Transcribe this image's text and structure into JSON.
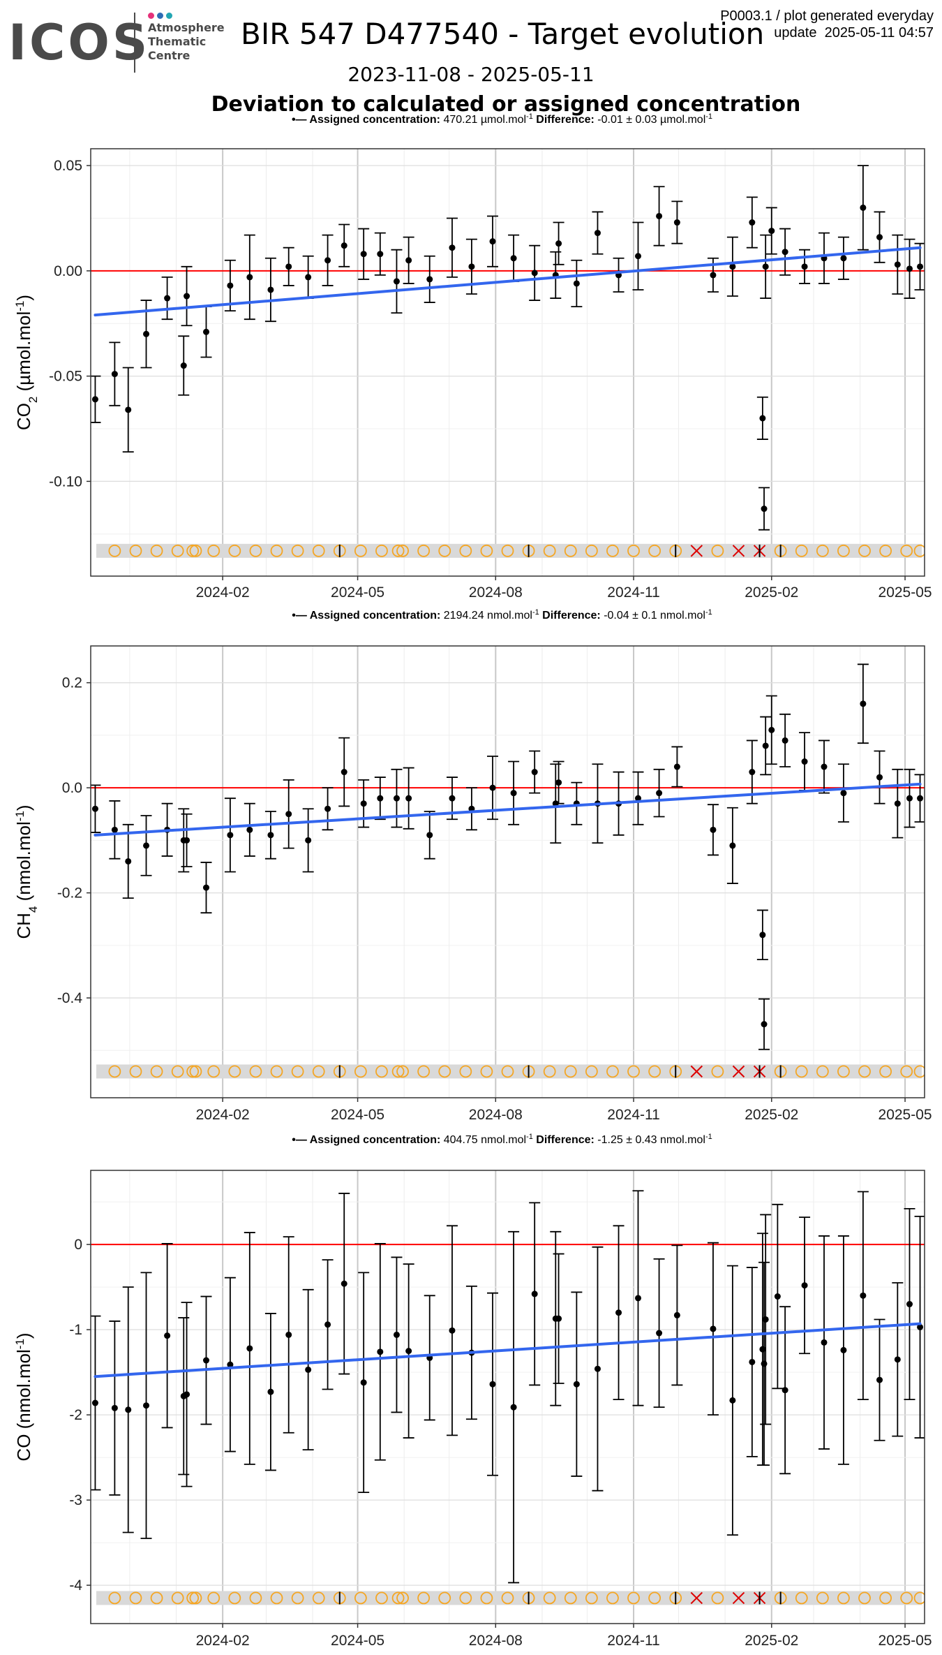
{
  "header": {
    "logo_text": "ICOS",
    "logo_sub_1": "Atmosphere",
    "logo_sub_2": "Thematic",
    "logo_sub_3": "Centre",
    "logo_dot_colors": [
      "#e5317a",
      "#2e6cb5",
      "#22a6b3"
    ],
    "title": "BIR 547 D477540 - Target evolution",
    "code": "P0003.1 / plot generated everyday",
    "update": "update  2025-05-11 04:57",
    "date_range": "2023-11-08 - 2025-05-11",
    "subtitle": "Deviation to calculated or assigned concentration"
  },
  "colors": {
    "trend": "#3366ee",
    "zero_line": "#ff0000",
    "points": "#000000",
    "flag_ok": "#f5a623",
    "flag_bad": "#dd0000",
    "flag_band": "#d9d9d9"
  },
  "flags": {
    "x": [
      "2023-11-21",
      "2023-12-05",
      "2023-12-19",
      "2024-01-02",
      "2024-01-12",
      "2024-01-14",
      "2024-01-26",
      "2024-02-09",
      "2024-02-23",
      "2024-03-08",
      "2024-03-22",
      "2024-04-05",
      "2024-04-19",
      "2024-05-03",
      "2024-05-17",
      "2024-05-28",
      "2024-05-31",
      "2024-06-14",
      "2024-06-28",
      "2024-07-12",
      "2024-07-26",
      "2024-08-09",
      "2024-08-23",
      "2024-09-06",
      "2024-09-20",
      "2024-10-04",
      "2024-10-18",
      "2024-11-01",
      "2024-11-15",
      "2024-11-29",
      "2024-12-13",
      "2024-12-27",
      "2025-01-10",
      "2025-01-24",
      "2025-02-07",
      "2025-02-21",
      "2025-03-07",
      "2025-03-21",
      "2025-04-04",
      "2025-04-18",
      "2025-05-02",
      "2025-05-11"
    ],
    "status": [
      "ok",
      "ok",
      "ok",
      "ok",
      "ok",
      "ok",
      "ok",
      "ok",
      "ok",
      "ok",
      "ok",
      "ok",
      "ok",
      "ok",
      "ok",
      "ok",
      "ok",
      "ok",
      "ok",
      "ok",
      "ok",
      "ok",
      "ok",
      "ok",
      "ok",
      "ok",
      "ok",
      "ok",
      "ok",
      "ok",
      "bad",
      "ok",
      "bad",
      "bad",
      "ok",
      "ok",
      "ok",
      "ok",
      "ok",
      "ok",
      "ok",
      "ok"
    ],
    "tick_marks": [
      "2024-04-19",
      "2024-08-23",
      "2024-11-29",
      "2025-01-24",
      "2025-02-07"
    ]
  },
  "chart_data": [
    {
      "type": "scatter",
      "gas": "CO2",
      "legend": {
        "assigned_label": "Assigned concentration:",
        "assigned_value": "470.21",
        "unit": "µmol.mol",
        "unit_sup": "-1",
        "difference_label": "Difference:",
        "difference_value": "-0.01 ± 0.03"
      },
      "ylabel": "CO",
      "ylabel_sub": "2",
      "ylabel_unit": " (µmol.mol",
      "ylabel_sup": "-1",
      "ylabel_close": ")",
      "ylim": [
        -0.145,
        0.058
      ],
      "yticks": [
        -0.1,
        -0.05,
        0.0,
        0.05
      ],
      "ytick_labels": [
        "-0.10",
        "-0.05",
        "0.00",
        "0.05"
      ],
      "xlim": [
        "2023-11-05",
        "2025-05-14"
      ],
      "xticks": [
        "2024-02-01",
        "2024-05-01",
        "2024-08-01",
        "2024-11-01",
        "2025-02-01",
        "2025-05-01"
      ],
      "xtick_labels": [
        "2024-02",
        "2024-05",
        "2024-08",
        "2024-11",
        "2025-02",
        "2025-05"
      ],
      "flag_y": -0.133,
      "trend": {
        "x": [
          "2023-11-08",
          "2025-05-11"
        ],
        "y": [
          -0.021,
          0.011
        ]
      },
      "points": [
        {
          "x": "2023-11-08",
          "y": -0.061,
          "e": 0.011
        },
        {
          "x": "2023-11-21",
          "y": -0.049,
          "e": 0.015
        },
        {
          "x": "2023-11-30",
          "y": -0.066,
          "e": 0.02
        },
        {
          "x": "2023-12-12",
          "y": -0.03,
          "e": 0.016
        },
        {
          "x": "2023-12-26",
          "y": -0.013,
          "e": 0.01
        },
        {
          "x": "2024-01-06",
          "y": -0.045,
          "e": 0.014
        },
        {
          "x": "2024-01-08",
          "y": -0.012,
          "e": 0.014
        },
        {
          "x": "2024-01-21",
          "y": -0.029,
          "e": 0.012
        },
        {
          "x": "2024-02-06",
          "y": -0.007,
          "e": 0.012
        },
        {
          "x": "2024-02-19",
          "y": -0.003,
          "e": 0.02
        },
        {
          "x": "2024-03-04",
          "y": -0.009,
          "e": 0.015
        },
        {
          "x": "2024-03-16",
          "y": 0.002,
          "e": 0.009
        },
        {
          "x": "2024-03-29",
          "y": -0.003,
          "e": 0.01
        },
        {
          "x": "2024-04-11",
          "y": 0.005,
          "e": 0.012
        },
        {
          "x": "2024-04-22",
          "y": 0.012,
          "e": 0.01
        },
        {
          "x": "2024-05-05",
          "y": 0.008,
          "e": 0.012
        },
        {
          "x": "2024-05-16",
          "y": 0.008,
          "e": 0.01
        },
        {
          "x": "2024-05-27",
          "y": -0.005,
          "e": 0.015
        },
        {
          "x": "2024-06-04",
          "y": 0.005,
          "e": 0.011
        },
        {
          "x": "2024-06-18",
          "y": -0.004,
          "e": 0.011
        },
        {
          "x": "2024-07-03",
          "y": 0.011,
          "e": 0.014
        },
        {
          "x": "2024-07-16",
          "y": 0.002,
          "e": 0.013
        },
        {
          "x": "2024-07-30",
          "y": 0.014,
          "e": 0.012
        },
        {
          "x": "2024-08-13",
          "y": 0.006,
          "e": 0.011
        },
        {
          "x": "2024-08-27",
          "y": -0.001,
          "e": 0.013
        },
        {
          "x": "2024-09-10",
          "y": -0.002,
          "e": 0.011
        },
        {
          "x": "2024-09-12",
          "y": 0.013,
          "e": 0.01
        },
        {
          "x": "2024-09-24",
          "y": -0.006,
          "e": 0.011
        },
        {
          "x": "2024-10-08",
          "y": 0.018,
          "e": 0.01
        },
        {
          "x": "2024-10-22",
          "y": -0.002,
          "e": 0.008
        },
        {
          "x": "2024-11-04",
          "y": 0.007,
          "e": 0.016
        },
        {
          "x": "2024-11-18",
          "y": 0.026,
          "e": 0.014
        },
        {
          "x": "2024-11-30",
          "y": 0.023,
          "e": 0.01
        },
        {
          "x": "2024-12-24",
          "y": -0.002,
          "e": 0.008
        },
        {
          "x": "2025-01-06",
          "y": 0.002,
          "e": 0.014
        },
        {
          "x": "2025-01-19",
          "y": 0.023,
          "e": 0.012
        },
        {
          "x": "2025-01-26",
          "y": -0.07,
          "e": 0.01
        },
        {
          "x": "2025-01-27",
          "y": -0.113,
          "e": 0.01
        },
        {
          "x": "2025-01-28",
          "y": 0.002,
          "e": 0.015
        },
        {
          "x": "2025-02-01",
          "y": 0.019,
          "e": 0.011
        },
        {
          "x": "2025-02-10",
          "y": 0.009,
          "e": 0.011
        },
        {
          "x": "2025-02-23",
          "y": 0.002,
          "e": 0.008
        },
        {
          "x": "2025-03-08",
          "y": 0.006,
          "e": 0.012
        },
        {
          "x": "2025-03-21",
          "y": 0.006,
          "e": 0.01
        },
        {
          "x": "2025-04-03",
          "y": 0.03,
          "e": 0.02
        },
        {
          "x": "2025-04-14",
          "y": 0.016,
          "e": 0.012
        },
        {
          "x": "2025-04-26",
          "y": 0.003,
          "e": 0.014
        },
        {
          "x": "2025-05-04",
          "y": 0.001,
          "e": 0.014
        },
        {
          "x": "2025-05-11",
          "y": 0.002,
          "e": 0.011
        }
      ]
    },
    {
      "type": "scatter",
      "gas": "CH4",
      "legend": {
        "assigned_label": "Assigned concentration:",
        "assigned_value": "2194.24",
        "unit": "nmol.mol",
        "unit_sup": "-1",
        "difference_label": "Difference:",
        "difference_value": "-0.04 ± 0.1"
      },
      "ylabel": "CH",
      "ylabel_sub": "4",
      "ylabel_unit": " (nmol.mol",
      "ylabel_sup": "-1",
      "ylabel_close": ")",
      "ylim": [
        -0.59,
        0.27
      ],
      "yticks": [
        -0.4,
        -0.2,
        0.0,
        0.2
      ],
      "ytick_labels": [
        "-0.4",
        "-0.2",
        "0.0",
        "0.2"
      ],
      "xlim": [
        "2023-11-05",
        "2025-05-14"
      ],
      "xticks": [
        "2024-02-01",
        "2024-05-01",
        "2024-08-01",
        "2024-11-01",
        "2025-02-01",
        "2025-05-01"
      ],
      "xtick_labels": [
        "2024-02",
        "2024-05",
        "2024-08",
        "2024-11",
        "2025-02",
        "2025-05"
      ],
      "flag_y": -0.54,
      "trend": {
        "x": [
          "2023-11-08",
          "2025-05-11"
        ],
        "y": [
          -0.09,
          0.007
        ]
      },
      "points": [
        {
          "x": "2023-11-08",
          "y": -0.04,
          "e": 0.045
        },
        {
          "x": "2023-11-21",
          "y": -0.08,
          "e": 0.055
        },
        {
          "x": "2023-11-30",
          "y": -0.14,
          "e": 0.07
        },
        {
          "x": "2023-12-12",
          "y": -0.11,
          "e": 0.057
        },
        {
          "x": "2023-12-26",
          "y": -0.08,
          "e": 0.05
        },
        {
          "x": "2024-01-06",
          "y": -0.1,
          "e": 0.06
        },
        {
          "x": "2024-01-08",
          "y": -0.1,
          "e": 0.05
        },
        {
          "x": "2024-01-21",
          "y": -0.19,
          "e": 0.048
        },
        {
          "x": "2024-02-06",
          "y": -0.09,
          "e": 0.07
        },
        {
          "x": "2024-02-19",
          "y": -0.08,
          "e": 0.05
        },
        {
          "x": "2024-03-04",
          "y": -0.09,
          "e": 0.045
        },
        {
          "x": "2024-03-16",
          "y": -0.05,
          "e": 0.065
        },
        {
          "x": "2024-03-29",
          "y": -0.1,
          "e": 0.06
        },
        {
          "x": "2024-04-11",
          "y": -0.04,
          "e": 0.04
        },
        {
          "x": "2024-04-22",
          "y": 0.03,
          "e": 0.065
        },
        {
          "x": "2024-05-05",
          "y": -0.03,
          "e": 0.045
        },
        {
          "x": "2024-05-16",
          "y": -0.02,
          "e": 0.04
        },
        {
          "x": "2024-05-27",
          "y": -0.02,
          "e": 0.055
        },
        {
          "x": "2024-06-04",
          "y": -0.02,
          "e": 0.058
        },
        {
          "x": "2024-06-18",
          "y": -0.09,
          "e": 0.045
        },
        {
          "x": "2024-07-03",
          "y": -0.02,
          "e": 0.04
        },
        {
          "x": "2024-07-16",
          "y": -0.04,
          "e": 0.04
        },
        {
          "x": "2024-07-30",
          "y": 0.0,
          "e": 0.06
        },
        {
          "x": "2024-08-13",
          "y": -0.01,
          "e": 0.06
        },
        {
          "x": "2024-08-27",
          "y": 0.03,
          "e": 0.04
        },
        {
          "x": "2024-09-10",
          "y": -0.03,
          "e": 0.075
        },
        {
          "x": "2024-09-12",
          "y": 0.01,
          "e": 0.04
        },
        {
          "x": "2024-09-24",
          "y": -0.03,
          "e": 0.04
        },
        {
          "x": "2024-10-08",
          "y": -0.03,
          "e": 0.075
        },
        {
          "x": "2024-10-22",
          "y": -0.03,
          "e": 0.06
        },
        {
          "x": "2024-11-04",
          "y": -0.02,
          "e": 0.05
        },
        {
          "x": "2024-11-18",
          "y": -0.01,
          "e": 0.045
        },
        {
          "x": "2024-11-30",
          "y": 0.04,
          "e": 0.038
        },
        {
          "x": "2024-12-24",
          "y": -0.08,
          "e": 0.048
        },
        {
          "x": "2025-01-06",
          "y": -0.11,
          "e": 0.072
        },
        {
          "x": "2025-01-19",
          "y": 0.03,
          "e": 0.06
        },
        {
          "x": "2025-01-26",
          "y": -0.28,
          "e": 0.047
        },
        {
          "x": "2025-01-27",
          "y": -0.45,
          "e": 0.048
        },
        {
          "x": "2025-01-28",
          "y": 0.08,
          "e": 0.055
        },
        {
          "x": "2025-02-01",
          "y": 0.11,
          "e": 0.065
        },
        {
          "x": "2025-02-10",
          "y": 0.09,
          "e": 0.05
        },
        {
          "x": "2025-02-23",
          "y": 0.05,
          "e": 0.055
        },
        {
          "x": "2025-03-08",
          "y": 0.04,
          "e": 0.05
        },
        {
          "x": "2025-03-21",
          "y": -0.01,
          "e": 0.055
        },
        {
          "x": "2025-04-03",
          "y": 0.16,
          "e": 0.075
        },
        {
          "x": "2025-04-14",
          "y": 0.02,
          "e": 0.05
        },
        {
          "x": "2025-04-26",
          "y": -0.03,
          "e": 0.065
        },
        {
          "x": "2025-05-04",
          "y": -0.02,
          "e": 0.055
        },
        {
          "x": "2025-05-11",
          "y": -0.02,
          "e": 0.045
        }
      ]
    },
    {
      "type": "scatter",
      "gas": "CO",
      "legend": {
        "assigned_label": "Assigned concentration:",
        "assigned_value": "404.75",
        "unit": "nmol.mol",
        "unit_sup": "-1",
        "difference_label": "Difference:",
        "difference_value": "-1.25 ± 0.43"
      },
      "ylabel": "CO",
      "ylabel_sub": "",
      "ylabel_unit": " (nmol.mol",
      "ylabel_sup": "-1",
      "ylabel_close": ")",
      "ylim": [
        -4.45,
        0.87
      ],
      "yticks": [
        -4,
        -3,
        -2,
        -1,
        0
      ],
      "ytick_labels": [
        "-4",
        "-3",
        "-2",
        "-1",
        "0"
      ],
      "xlim": [
        "2023-11-05",
        "2025-05-14"
      ],
      "xticks": [
        "2024-02-01",
        "2024-05-01",
        "2024-08-01",
        "2024-11-01",
        "2025-02-01",
        "2025-05-01"
      ],
      "xtick_labels": [
        "2024-02",
        "2024-05",
        "2024-08",
        "2024-11",
        "2025-02",
        "2025-05"
      ],
      "flag_y": -4.15,
      "trend": {
        "x": [
          "2023-11-08",
          "2025-05-11"
        ],
        "y": [
          -1.55,
          -0.93
        ]
      },
      "points": [
        {
          "x": "2023-11-08",
          "y": -1.86,
          "e": 1.02
        },
        {
          "x": "2023-11-21",
          "y": -1.92,
          "e": 1.02
        },
        {
          "x": "2023-11-30",
          "y": -1.94,
          "e": 1.44
        },
        {
          "x": "2023-12-12",
          "y": -1.89,
          "e": 1.56
        },
        {
          "x": "2023-12-26",
          "y": -1.07,
          "e": 1.08
        },
        {
          "x": "2024-01-06",
          "y": -1.78,
          "e": 0.92
        },
        {
          "x": "2024-01-08",
          "y": -1.76,
          "e": 1.08
        },
        {
          "x": "2024-01-21",
          "y": -1.36,
          "e": 0.75
        },
        {
          "x": "2024-02-06",
          "y": -1.41,
          "e": 1.02
        },
        {
          "x": "2024-02-19",
          "y": -1.22,
          "e": 1.36
        },
        {
          "x": "2024-03-04",
          "y": -1.73,
          "e": 0.92
        },
        {
          "x": "2024-03-16",
          "y": -1.06,
          "e": 1.15
        },
        {
          "x": "2024-03-29",
          "y": -1.47,
          "e": 0.94
        },
        {
          "x": "2024-04-11",
          "y": -0.94,
          "e": 0.76
        },
        {
          "x": "2024-04-22",
          "y": -0.46,
          "e": 1.06
        },
        {
          "x": "2024-05-05",
          "y": -1.62,
          "e": 1.29
        },
        {
          "x": "2024-05-16",
          "y": -1.26,
          "e": 1.27
        },
        {
          "x": "2024-05-27",
          "y": -1.06,
          "e": 0.91
        },
        {
          "x": "2024-06-04",
          "y": -1.25,
          "e": 1.02
        },
        {
          "x": "2024-06-18",
          "y": -1.33,
          "e": 0.73
        },
        {
          "x": "2024-07-03",
          "y": -1.01,
          "e": 1.23
        },
        {
          "x": "2024-07-16",
          "y": -1.27,
          "e": 0.78
        },
        {
          "x": "2024-07-30",
          "y": -1.64,
          "e": 1.07
        },
        {
          "x": "2024-08-13",
          "y": -1.91,
          "e": 2.06
        },
        {
          "x": "2024-08-27",
          "y": -0.58,
          "e": 1.07
        },
        {
          "x": "2024-09-10",
          "y": -0.87,
          "e": 1.02
        },
        {
          "x": "2024-09-12",
          "y": -0.87,
          "e": 0.76
        },
        {
          "x": "2024-09-24",
          "y": -1.64,
          "e": 1.08
        },
        {
          "x": "2024-10-08",
          "y": -1.46,
          "e": 1.43
        },
        {
          "x": "2024-10-22",
          "y": -0.8,
          "e": 1.02
        },
        {
          "x": "2024-11-04",
          "y": -0.63,
          "e": 1.26
        },
        {
          "x": "2024-11-18",
          "y": -1.04,
          "e": 0.87
        },
        {
          "x": "2024-11-30",
          "y": -0.83,
          "e": 0.82
        },
        {
          "x": "2024-12-24",
          "y": -0.99,
          "e": 1.01
        },
        {
          "x": "2025-01-06",
          "y": -1.83,
          "e": 1.58
        },
        {
          "x": "2025-01-19",
          "y": -1.38,
          "e": 1.11
        },
        {
          "x": "2025-01-26",
          "y": -1.23,
          "e": 1.36
        },
        {
          "x": "2025-01-27",
          "y": -1.4,
          "e": 1.19
        },
        {
          "x": "2025-01-28",
          "y": -0.88,
          "e": 1.23
        },
        {
          "x": "2025-02-05",
          "y": -0.61,
          "e": 1.08
        },
        {
          "x": "2025-02-10",
          "y": -1.71,
          "e": 0.98
        },
        {
          "x": "2025-02-23",
          "y": -0.48,
          "e": 0.8
        },
        {
          "x": "2025-03-08",
          "y": -1.15,
          "e": 1.25
        },
        {
          "x": "2025-03-21",
          "y": -1.24,
          "e": 1.34
        },
        {
          "x": "2025-04-03",
          "y": -0.6,
          "e": 1.22
        },
        {
          "x": "2025-04-14",
          "y": -1.59,
          "e": 0.71
        },
        {
          "x": "2025-04-26",
          "y": -1.35,
          "e": 0.9
        },
        {
          "x": "2025-05-04",
          "y": -0.7,
          "e": 1.12
        },
        {
          "x": "2025-05-11",
          "y": -0.97,
          "e": 1.3
        }
      ]
    }
  ]
}
